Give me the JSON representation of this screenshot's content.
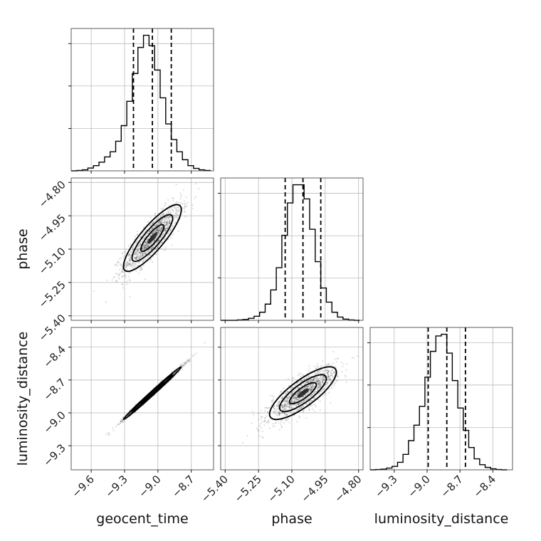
{
  "chart_data": {
    "type": "scatter",
    "chart_kind": "corner plot",
    "grid": true,
    "parameters": [
      {
        "name": "geocent_time",
        "label": "geocent_time",
        "lim": [
          -9.78,
          -8.5
        ],
        "ticks": [
          -9.6,
          -9.3,
          -9.0,
          -8.7
        ],
        "tick_labels": [
          "−9.6",
          "−9.3",
          "−9.0",
          "−8.7"
        ],
        "mean": -9.05,
        "std": 0.13,
        "quantiles": [
          -9.22,
          -9.05,
          -8.88
        ],
        "histogram": {
          "edges": [
            -9.78,
            -9.73,
            -9.68,
            -9.63,
            -9.58,
            -9.53,
            -9.48,
            -9.43,
            -9.38,
            -9.33,
            -9.28,
            -9.23,
            -9.18,
            -9.13,
            -9.08,
            -9.03,
            -8.98,
            -8.93,
            -8.88,
            -8.83,
            -8.78,
            -8.73,
            -8.68,
            -8.63,
            -8.58,
            -8.53
          ],
          "counts": [
            0,
            1,
            3,
            8,
            15,
            25,
            40,
            55,
            85,
            130,
            200,
            280,
            355,
            390,
            360,
            290,
            210,
            135,
            90,
            55,
            32,
            15,
            7,
            3,
            1
          ]
        }
      },
      {
        "name": "phase",
        "label": "phase",
        "lim": [
          -5.42,
          -4.78
        ],
        "ticks": [
          -5.4,
          -5.25,
          -5.1,
          -4.95,
          -4.8
        ],
        "tick_labels": [
          "−5.40",
          "−5.25",
          "−5.10",
          "−4.95",
          "−4.80"
        ],
        "mean": -5.05,
        "std": 0.075,
        "quantiles": [
          -5.13,
          -5.05,
          -4.97
        ],
        "histogram": {
          "edges": [
            -5.42,
            -5.395,
            -5.37,
            -5.345,
            -5.32,
            -5.295,
            -5.27,
            -5.245,
            -5.22,
            -5.195,
            -5.17,
            -5.145,
            -5.12,
            -5.095,
            -5.07,
            -5.045,
            -5.02,
            -4.995,
            -4.97,
            -4.945,
            -4.92,
            -4.895,
            -4.87,
            -4.845,
            -4.82,
            -4.795
          ],
          "counts": [
            0,
            0,
            0,
            1,
            2,
            5,
            10,
            20,
            40,
            75,
            130,
            210,
            290,
            335,
            335,
            300,
            225,
            145,
            80,
            45,
            20,
            8,
            3,
            1,
            0
          ]
        }
      },
      {
        "name": "luminosity_distance",
        "label": "luminosity_distance",
        "lim": [
          -9.52,
          -8.22
        ],
        "ticks": [
          -9.3,
          -9.0,
          -8.7,
          -8.4
        ],
        "tick_labels": [
          "−9.3",
          "−9.0",
          "−8.7",
          "−8.4"
        ],
        "mean": -8.82,
        "std": 0.12,
        "quantiles": [
          -8.99,
          -8.82,
          -8.65
        ],
        "histogram": {
          "edges": [
            -9.52,
            -9.47,
            -9.42,
            -9.37,
            -9.32,
            -9.27,
            -9.22,
            -9.17,
            -9.12,
            -9.07,
            -9.02,
            -8.97,
            -8.92,
            -8.87,
            -8.82,
            -8.77,
            -8.72,
            -8.67,
            -8.62,
            -8.57,
            -8.52,
            -8.47,
            -8.42,
            -8.37,
            -8.32,
            -8.27
          ],
          "counts": [
            0,
            1,
            2,
            5,
            10,
            22,
            45,
            85,
            130,
            185,
            270,
            345,
            390,
            395,
            340,
            260,
            180,
            115,
            65,
            32,
            15,
            7,
            3,
            1,
            0
          ]
        }
      }
    ],
    "pairs": [
      {
        "x": "geocent_time",
        "y": "phase",
        "correlation": 0.85
      },
      {
        "x": "geocent_time",
        "y": "luminosity_distance",
        "correlation": 0.995
      },
      {
        "x": "phase",
        "y": "luminosity_distance",
        "correlation": 0.8
      }
    ]
  }
}
